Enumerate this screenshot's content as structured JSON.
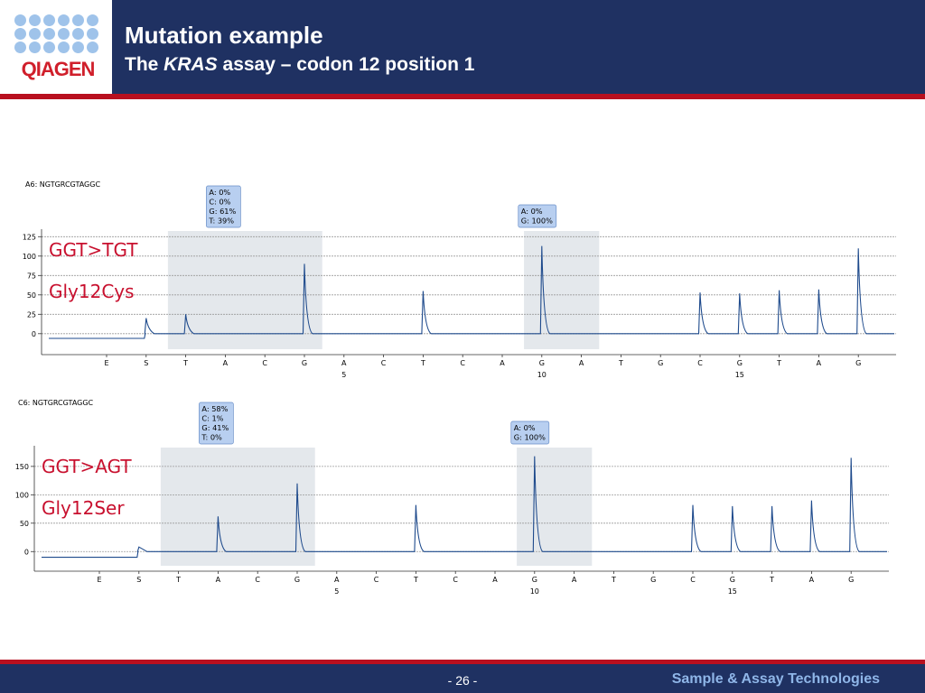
{
  "header": {
    "logo_text": "QIAGEN",
    "title": "Mutation example",
    "subtitle_pre": "The ",
    "subtitle_em": "KRAS",
    "subtitle_post": " assay – codon 12 position 1",
    "colors": {
      "band": "#1f3162",
      "accent_rule": "#b8101f",
      "logo_red": "#d01f2b",
      "logo_dot": "#9fc3ea"
    }
  },
  "footer": {
    "page_number": "- 26 -",
    "brand": "Sample & Assay Technologies"
  },
  "chart_data": [
    {
      "type": "line",
      "sample_label": "A6: NGTGRCGTAGGC",
      "mutation_label": "GGT>TGT",
      "aa_label": "Gly12Cys",
      "dispensation": [
        "E",
        "S",
        "T",
        "A",
        "C",
        "G",
        "A",
        "C",
        "T",
        "C",
        "A",
        "G",
        "A",
        "T",
        "G",
        "C",
        "G",
        "T",
        "A",
        "G"
      ],
      "position_markers": [
        {
          "index": 6,
          "label": "5"
        },
        {
          "index": 11,
          "label": "10"
        },
        {
          "index": 16,
          "label": "15"
        }
      ],
      "peaks": [
        0,
        20,
        25,
        0,
        0,
        90,
        0,
        0,
        55,
        0,
        0,
        113,
        0,
        0,
        0,
        53,
        52,
        56,
        57,
        110
      ],
      "baseline": -6,
      "yticks": [
        0,
        25,
        50,
        75,
        100,
        125
      ],
      "ylim": [
        -20,
        130
      ],
      "highlights": [
        {
          "from": 2,
          "to": 5
        },
        {
          "from": 11,
          "to": 12
        }
      ],
      "annotations": [
        {
          "anchor": 3,
          "lines": [
            "A: 0%",
            "C: 0%",
            "G: 61%",
            "T: 39%"
          ]
        },
        {
          "anchor": 11,
          "lines": [
            "A: 0%",
            "G: 100%"
          ]
        }
      ],
      "line_color": "#1e4a8c",
      "highlight_color": "#e4e8ec",
      "annotation_fill": "#b8cff0",
      "mutation_label_color": "#c8102e"
    },
    {
      "type": "line",
      "sample_label": "C6: NGTGRCGTAGGC",
      "mutation_label": "GGT>AGT",
      "aa_label": "Gly12Ser",
      "dispensation": [
        "E",
        "S",
        "T",
        "A",
        "C",
        "G",
        "A",
        "C",
        "T",
        "C",
        "A",
        "G",
        "A",
        "T",
        "G",
        "C",
        "G",
        "T",
        "A",
        "G"
      ],
      "position_markers": [
        {
          "index": 6,
          "label": "5"
        },
        {
          "index": 11,
          "label": "10"
        },
        {
          "index": 16,
          "label": "15"
        }
      ],
      "peaks": [
        0,
        8,
        0,
        62,
        0,
        120,
        0,
        0,
        82,
        0,
        0,
        168,
        0,
        0,
        0,
        82,
        80,
        80,
        90,
        165
      ],
      "baseline": -10,
      "yticks": [
        0,
        50,
        100,
        150
      ],
      "ylim": [
        -25,
        180
      ],
      "highlights": [
        {
          "from": 2,
          "to": 5
        },
        {
          "from": 11,
          "to": 12
        }
      ],
      "annotations": [
        {
          "anchor": 3,
          "lines": [
            "A: 58%",
            "C: 1%",
            "G: 41%",
            "T: 0%"
          ]
        },
        {
          "anchor": 11,
          "lines": [
            "A: 0%",
            "G: 100%"
          ]
        }
      ],
      "line_color": "#1e4a8c",
      "highlight_color": "#e4e8ec",
      "annotation_fill": "#b8cff0",
      "mutation_label_color": "#c8102e"
    }
  ]
}
